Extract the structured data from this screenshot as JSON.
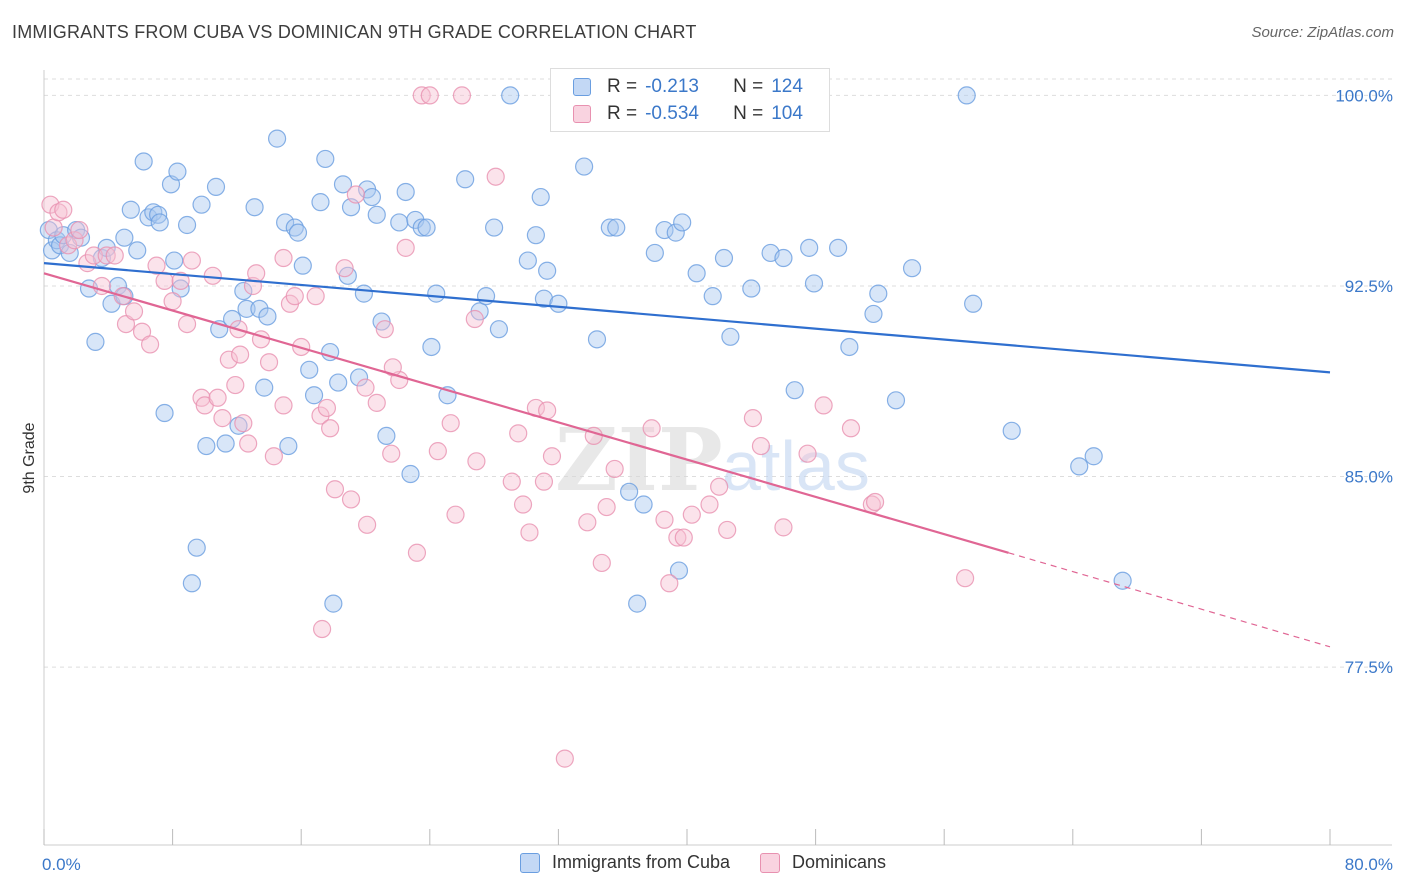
{
  "title": "IMMIGRANTS FROM CUBA VS DOMINICAN 9TH GRADE CORRELATION CHART",
  "source": "Source: ZipAtlas.com",
  "watermark": "ZIPatlas",
  "colors": {
    "blue_fill": "#a9c8f0",
    "blue_stroke": "#6a9ee0",
    "blue_line": "#2f6fcf",
    "pink_fill": "#f6c0d2",
    "pink_stroke": "#e891b0",
    "pink_line": "#e06694",
    "tick_label": "#3b78c9",
    "grid": "#dddddd"
  },
  "legend": {
    "rows": [
      {
        "r_label": "R =",
        "r_value": "-0.213",
        "n_label": "N =",
        "n_value": "124"
      },
      {
        "r_label": "R =",
        "r_value": "-0.534",
        "n_label": "N =",
        "n_value": "104"
      }
    ]
  },
  "bottom_legend": [
    "Immigrants from Cuba",
    "Dominicans"
  ],
  "chart_data": {
    "type": "scatter",
    "title": "IMMIGRANTS FROM CUBA VS DOMINICAN 9TH GRADE CORRELATION CHART",
    "xlabel": "",
    "ylabel": "9th Grade",
    "xlim": [
      0,
      80
    ],
    "ylim": [
      70.5,
      101
    ],
    "x_tick_labels": [
      "0.0%",
      "80.0%"
    ],
    "y_ticks": [
      100.0,
      92.5,
      85.0,
      77.5
    ],
    "y_tick_labels": [
      "100.0%",
      "92.5%",
      "85.0%",
      "77.5%"
    ],
    "grid": "horizontal dashed",
    "legend_placement": "top-center",
    "series": [
      {
        "name": "Immigrants from Cuba",
        "color": "#a9c8f0",
        "trend": {
          "x": [
            0,
            80
          ],
          "y": [
            93.4,
            89.1
          ]
        },
        "points": [
          [
            0.3,
            94.7
          ],
          [
            0.5,
            93.9
          ],
          [
            0.8,
            94.3
          ],
          [
            1.0,
            94.1
          ],
          [
            1.2,
            94.5
          ],
          [
            1.6,
            93.8
          ],
          [
            2.0,
            94.7
          ],
          [
            2.3,
            94.4
          ],
          [
            2.8,
            92.4
          ],
          [
            3.2,
            90.3
          ],
          [
            3.6,
            93.6
          ],
          [
            3.9,
            94.0
          ],
          [
            4.2,
            91.8
          ],
          [
            4.6,
            92.5
          ],
          [
            5.0,
            94.4
          ],
          [
            5.0,
            92.1
          ],
          [
            5.4,
            95.5
          ],
          [
            5.8,
            93.9
          ],
          [
            6.2,
            97.4
          ],
          [
            6.5,
            95.2
          ],
          [
            6.8,
            95.4
          ],
          [
            7.1,
            95.3
          ],
          [
            7.2,
            95.0
          ],
          [
            7.5,
            87.5
          ],
          [
            7.9,
            96.5
          ],
          [
            8.1,
            93.5
          ],
          [
            8.3,
            97.0
          ],
          [
            8.5,
            92.4
          ],
          [
            8.9,
            94.9
          ],
          [
            9.2,
            80.8
          ],
          [
            9.5,
            82.2
          ],
          [
            9.8,
            95.7
          ],
          [
            10.1,
            86.2
          ],
          [
            10.7,
            96.4
          ],
          [
            10.9,
            90.8
          ],
          [
            11.3,
            86.3
          ],
          [
            11.7,
            91.2
          ],
          [
            12.1,
            87.0
          ],
          [
            12.4,
            92.3
          ],
          [
            12.6,
            91.6
          ],
          [
            13.1,
            95.6
          ],
          [
            13.4,
            91.6
          ],
          [
            13.7,
            88.5
          ],
          [
            13.9,
            91.3
          ],
          [
            14.5,
            98.3
          ],
          [
            15.0,
            95.0
          ],
          [
            15.2,
            86.2
          ],
          [
            15.6,
            94.8
          ],
          [
            15.8,
            94.6
          ],
          [
            16.1,
            93.3
          ],
          [
            16.5,
            89.2
          ],
          [
            16.8,
            88.2
          ],
          [
            17.2,
            95.8
          ],
          [
            17.5,
            97.5
          ],
          [
            17.8,
            89.9
          ],
          [
            18.0,
            80.0
          ],
          [
            18.3,
            88.7
          ],
          [
            18.6,
            96.5
          ],
          [
            18.9,
            92.9
          ],
          [
            19.1,
            95.6
          ],
          [
            19.6,
            88.9
          ],
          [
            19.9,
            92.2
          ],
          [
            20.1,
            96.3
          ],
          [
            20.4,
            96.0
          ],
          [
            20.7,
            95.3
          ],
          [
            21.0,
            91.1
          ],
          [
            21.3,
            86.6
          ],
          [
            22.1,
            95.0
          ],
          [
            22.5,
            96.2
          ],
          [
            22.8,
            85.1
          ],
          [
            23.1,
            95.1
          ],
          [
            23.5,
            94.8
          ],
          [
            23.8,
            94.8
          ],
          [
            24.1,
            90.1
          ],
          [
            24.4,
            92.2
          ],
          [
            25.1,
            88.2
          ],
          [
            26.2,
            96.7
          ],
          [
            27.1,
            91.5
          ],
          [
            27.5,
            92.1
          ],
          [
            28.0,
            94.8
          ],
          [
            28.3,
            90.8
          ],
          [
            29.0,
            100.0
          ],
          [
            30.1,
            93.5
          ],
          [
            30.6,
            94.5
          ],
          [
            30.9,
            96.0
          ],
          [
            31.1,
            92.0
          ],
          [
            31.3,
            93.1
          ],
          [
            32.0,
            91.8
          ],
          [
            33.6,
            97.2
          ],
          [
            34.4,
            90.4
          ],
          [
            35.2,
            94.8
          ],
          [
            35.6,
            94.8
          ],
          [
            36.4,
            84.4
          ],
          [
            36.9,
            80.0
          ],
          [
            37.3,
            83.9
          ],
          [
            38.0,
            93.8
          ],
          [
            38.6,
            94.7
          ],
          [
            39.3,
            94.6
          ],
          [
            39.5,
            81.3
          ],
          [
            39.7,
            95.0
          ],
          [
            40.6,
            93.0
          ],
          [
            41.6,
            92.1
          ],
          [
            42.3,
            93.6
          ],
          [
            42.7,
            90.5
          ],
          [
            44.0,
            92.4
          ],
          [
            45.2,
            93.8
          ],
          [
            46.0,
            93.6
          ],
          [
            46.7,
            88.4
          ],
          [
            47.6,
            94.0
          ],
          [
            47.9,
            92.6
          ],
          [
            49.4,
            94.0
          ],
          [
            50.1,
            90.1
          ],
          [
            51.6,
            91.4
          ],
          [
            51.9,
            92.2
          ],
          [
            53.0,
            88.0
          ],
          [
            54.0,
            93.2
          ],
          [
            57.4,
            100.0
          ],
          [
            57.8,
            91.8
          ],
          [
            60.2,
            86.8
          ],
          [
            64.4,
            85.4
          ],
          [
            65.3,
            85.8
          ],
          [
            67.1,
            80.9
          ]
        ]
      },
      {
        "name": "Dominicans",
        "color": "#f6c0d2",
        "trend": {
          "x": [
            0,
            60
          ],
          "y": [
            93.0,
            82.0
          ]
        },
        "trend_dashed": {
          "x": [
            60,
            80
          ],
          "y": [
            82.0,
            78.3
          ]
        },
        "points": [
          [
            0.4,
            95.7
          ],
          [
            0.6,
            94.8
          ],
          [
            0.9,
            95.4
          ],
          [
            1.2,
            95.5
          ],
          [
            1.5,
            94.1
          ],
          [
            1.9,
            94.3
          ],
          [
            2.2,
            94.7
          ],
          [
            2.7,
            93.4
          ],
          [
            3.1,
            93.7
          ],
          [
            3.6,
            92.5
          ],
          [
            3.9,
            93.7
          ],
          [
            4.4,
            93.7
          ],
          [
            4.9,
            92.1
          ],
          [
            5.1,
            91.0
          ],
          [
            5.6,
            91.5
          ],
          [
            6.1,
            90.7
          ],
          [
            6.6,
            90.2
          ],
          [
            7.0,
            93.3
          ],
          [
            7.5,
            92.7
          ],
          [
            8.0,
            91.9
          ],
          [
            8.5,
            92.7
          ],
          [
            8.9,
            91.0
          ],
          [
            9.2,
            93.5
          ],
          [
            9.8,
            88.1
          ],
          [
            10.0,
            87.8
          ],
          [
            10.5,
            92.9
          ],
          [
            10.8,
            88.1
          ],
          [
            11.1,
            87.3
          ],
          [
            11.5,
            89.6
          ],
          [
            11.9,
            88.6
          ],
          [
            12.2,
            89.8
          ],
          [
            12.4,
            87.1
          ],
          [
            12.7,
            86.3
          ],
          [
            13.0,
            92.5
          ],
          [
            13.5,
            90.4
          ],
          [
            14.0,
            89.5
          ],
          [
            14.3,
            85.8
          ],
          [
            14.9,
            87.8
          ],
          [
            15.3,
            91.8
          ],
          [
            15.6,
            92.1
          ],
          [
            16.0,
            90.1
          ],
          [
            16.9,
            92.1
          ],
          [
            17.2,
            87.4
          ],
          [
            17.6,
            87.7
          ],
          [
            17.8,
            86.9
          ],
          [
            18.1,
            84.5
          ],
          [
            18.7,
            93.2
          ],
          [
            19.1,
            84.1
          ],
          [
            19.4,
            96.1
          ],
          [
            20.1,
            83.1
          ],
          [
            20.7,
            87.9
          ],
          [
            21.2,
            90.8
          ],
          [
            21.6,
            85.9
          ],
          [
            22.1,
            88.8
          ],
          [
            22.5,
            94.0
          ],
          [
            23.2,
            82.0
          ],
          [
            23.5,
            100.0
          ],
          [
            24.0,
            100.0
          ],
          [
            24.5,
            86.0
          ],
          [
            25.3,
            87.1
          ],
          [
            25.6,
            83.5
          ],
          [
            26.0,
            100.0
          ],
          [
            26.9,
            85.6
          ],
          [
            28.1,
            96.8
          ],
          [
            29.1,
            84.8
          ],
          [
            29.5,
            86.7
          ],
          [
            29.8,
            83.9
          ],
          [
            30.6,
            87.7
          ],
          [
            31.1,
            84.8
          ],
          [
            31.3,
            87.6
          ],
          [
            31.6,
            85.8
          ],
          [
            32.4,
            73.9
          ],
          [
            33.1,
            100.0
          ],
          [
            33.8,
            83.2
          ],
          [
            34.2,
            86.6
          ],
          [
            34.7,
            81.6
          ],
          [
            35.0,
            83.8
          ],
          [
            35.5,
            85.3
          ],
          [
            37.8,
            86.9
          ],
          [
            38.6,
            83.3
          ],
          [
            38.9,
            80.8
          ],
          [
            39.4,
            82.6
          ],
          [
            39.8,
            82.6
          ],
          [
            40.3,
            83.5
          ],
          [
            41.4,
            83.9
          ],
          [
            42.5,
            82.9
          ],
          [
            44.1,
            87.3
          ],
          [
            44.6,
            86.2
          ],
          [
            47.5,
            85.9
          ],
          [
            48.5,
            87.8
          ],
          [
            50.2,
            86.9
          ],
          [
            51.5,
            83.9
          ],
          [
            51.7,
            84.0
          ],
          [
            57.3,
            81.0
          ],
          [
            13.2,
            93.0
          ],
          [
            20.0,
            88.5
          ],
          [
            26.8,
            91.2
          ],
          [
            30.2,
            82.8
          ],
          [
            42.0,
            84.6
          ],
          [
            46.0,
            83.0
          ],
          [
            17.3,
            79.0
          ],
          [
            14.9,
            93.6
          ],
          [
            12.1,
            90.8
          ],
          [
            21.7,
            89.3
          ]
        ]
      }
    ]
  }
}
